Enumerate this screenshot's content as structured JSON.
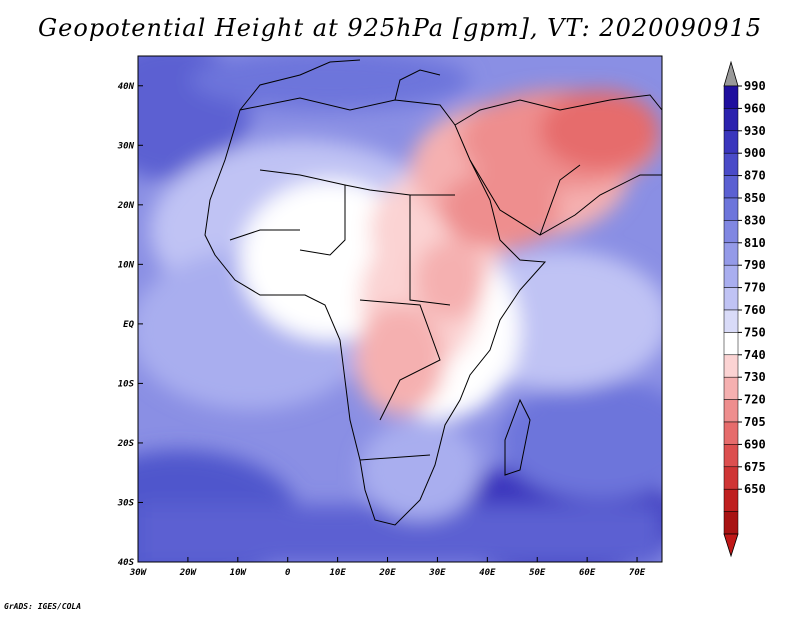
{
  "title": "Geopotential Height at 925hPa [gpm], VT: 2020090915",
  "credit": "GrADS: IGES/COLA",
  "map": {
    "lon_range": [
      -30,
      75
    ],
    "lat_range": [
      -40,
      45
    ],
    "lon_ticks": [
      {
        "value": -30,
        "label": "30W"
      },
      {
        "value": -20,
        "label": "20W"
      },
      {
        "value": -10,
        "label": "10W"
      },
      {
        "value": 0,
        "label": "0"
      },
      {
        "value": 10,
        "label": "10E"
      },
      {
        "value": 20,
        "label": "20E"
      },
      {
        "value": 30,
        "label": "30E"
      },
      {
        "value": 40,
        "label": "40E"
      },
      {
        "value": 50,
        "label": "50E"
      },
      {
        "value": 60,
        "label": "60E"
      },
      {
        "value": 70,
        "label": "70E"
      }
    ],
    "lat_ticks": [
      {
        "value": 40,
        "label": "40N"
      },
      {
        "value": 30,
        "label": "30N"
      },
      {
        "value": 20,
        "label": "20N"
      },
      {
        "value": 10,
        "label": "10N"
      },
      {
        "value": 0,
        "label": "EQ"
      },
      {
        "value": -10,
        "label": "10S"
      },
      {
        "value": -20,
        "label": "20S"
      },
      {
        "value": -30,
        "label": "30S"
      },
      {
        "value": -40,
        "label": "40S"
      }
    ]
  },
  "colorbar": {
    "labels": [
      "990",
      "960",
      "930",
      "900",
      "870",
      "850",
      "830",
      "810",
      "790",
      "770",
      "760",
      "750",
      "740",
      "730",
      "720",
      "705",
      "690",
      "675",
      "650"
    ],
    "colors": [
      "#1f0f9e",
      "#2b22ae",
      "#3a36bd",
      "#4a4bc8",
      "#5b60d2",
      "#6d75db",
      "#8087e2",
      "#949ae8",
      "#a9aeef",
      "#c0c3f4",
      "#d9dbf8",
      "#ffffff",
      "#fbd3d3",
      "#f5b0b0",
      "#ee8e8e",
      "#e66c6c",
      "#dc4f4f",
      "#cf3535",
      "#bf1f1f",
      "#a81313"
    ],
    "top_arrow_color": "#999999",
    "bottom_arrow_color": "#c01818"
  }
}
